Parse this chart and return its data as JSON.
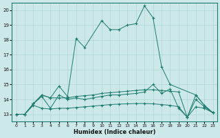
{
  "xlabel": "Humidex (Indice chaleur)",
  "xlim": [
    -0.5,
    23.5
  ],
  "ylim": [
    12.5,
    20.5
  ],
  "yticks": [
    13,
    14,
    15,
    16,
    17,
    18,
    19,
    20
  ],
  "xticks": [
    0,
    1,
    2,
    3,
    4,
    5,
    6,
    7,
    8,
    9,
    10,
    11,
    12,
    13,
    14,
    15,
    16,
    17,
    18,
    19,
    20,
    21,
    22,
    23
  ],
  "line_color": "#1a7a6e",
  "bg_color": "#cce8e8",
  "grid_color": "#afd4d4",
  "lines": [
    {
      "x": [
        0,
        1,
        2,
        3,
        4,
        5,
        6,
        7,
        8,
        10,
        11,
        12,
        13,
        14,
        15,
        16,
        17,
        18,
        21,
        22,
        23
      ],
      "y": [
        13,
        13,
        13.7,
        14.3,
        14.1,
        14.9,
        14.2,
        18.1,
        17.5,
        19.3,
        18.7,
        18.7,
        19.0,
        19.1,
        20.3,
        19.5,
        16.2,
        15.0,
        14.3,
        13.6,
        13.1
      ]
    },
    {
      "x": [
        0,
        1,
        2,
        3,
        4,
        5,
        6,
        7,
        8,
        9,
        10,
        11,
        12,
        13,
        14,
        15,
        16,
        17,
        18,
        19,
        20,
        21,
        22,
        23
      ],
      "y": [
        13,
        13,
        13.7,
        14.3,
        14.1,
        14.1,
        14.1,
        14.2,
        14.25,
        14.3,
        14.4,
        14.45,
        14.5,
        14.55,
        14.6,
        14.65,
        14.65,
        14.6,
        14.55,
        14.5,
        12.8,
        14.3,
        13.6,
        13.1
      ]
    },
    {
      "x": [
        0,
        1,
        2,
        3,
        4,
        5,
        6,
        7,
        8,
        9,
        10,
        11,
        12,
        13,
        14,
        15,
        16,
        17,
        18,
        19,
        20,
        21,
        22,
        23
      ],
      "y": [
        13,
        13,
        13.7,
        14.2,
        13.4,
        14.3,
        14.0,
        14.1,
        14.0,
        14.1,
        14.2,
        14.3,
        14.3,
        14.35,
        14.4,
        14.5,
        15.0,
        14.4,
        14.7,
        13.4,
        12.8,
        14.0,
        13.5,
        13.1
      ]
    },
    {
      "x": [
        0,
        1,
        2,
        3,
        4,
        5,
        6,
        7,
        8,
        9,
        10,
        11,
        12,
        13,
        14,
        15,
        16,
        17,
        18,
        19,
        20,
        21,
        22,
        23
      ],
      "y": [
        13,
        13,
        13.6,
        13.4,
        13.35,
        13.4,
        13.4,
        13.45,
        13.5,
        13.55,
        13.6,
        13.65,
        13.68,
        13.7,
        13.72,
        13.72,
        13.7,
        13.65,
        13.6,
        13.5,
        12.8,
        13.5,
        13.4,
        13.1
      ]
    }
  ]
}
